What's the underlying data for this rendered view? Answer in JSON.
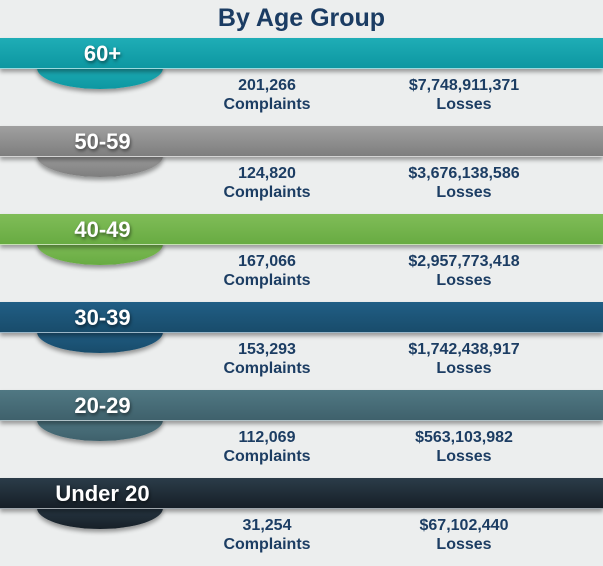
{
  "title": "By Age Group",
  "labels": {
    "complaints": "Complaints",
    "losses": "Losses"
  },
  "colors": {
    "background": "#eceeee",
    "text_navy": "#1c3d63",
    "label_white": "#ffffff"
  },
  "rows": [
    {
      "age": "60+",
      "complaints": "201,266",
      "losses": "$7,748,911,371",
      "color_top": "#1fadb6",
      "color_bottom": "#0d97a1"
    },
    {
      "age": "50-59",
      "complaints": "124,820",
      "losses": "$3,676,138,586",
      "color_top": "#a0a0a0",
      "color_bottom": "#7e7e7e"
    },
    {
      "age": "40-49",
      "complaints": "167,066",
      "losses": "$2,957,773,418",
      "color_top": "#80bd58",
      "color_bottom": "#68ab42"
    },
    {
      "age": "30-39",
      "complaints": "153,293",
      "losses": "$1,742,438,917",
      "color_top": "#215e85",
      "color_bottom": "#184c6b"
    },
    {
      "age": "20-29",
      "complaints": "112,069",
      "losses": "$563,103,982",
      "color_top": "#507883",
      "color_bottom": "#3f616c"
    },
    {
      "age": "Under 20",
      "complaints": "31,254",
      "losses": "$67,102,440",
      "color_top": "#2b3c49",
      "color_bottom": "#161f27"
    }
  ],
  "chart_data": {
    "type": "table",
    "title": "By Age Group",
    "categories": [
      "60+",
      "50-59",
      "40-49",
      "30-39",
      "20-29",
      "Under 20"
    ],
    "series": [
      {
        "name": "Complaints",
        "values": [
          201266,
          124820,
          167066,
          153293,
          112069,
          31254
        ]
      },
      {
        "name": "Losses ($)",
        "values": [
          7748911371,
          3676138586,
          2957773418,
          1742438917,
          563103982,
          67102440
        ]
      }
    ],
    "layout": "horizontal ribbon banners, one per age group; each banner shows age label on colored ribbon with complaints count and dollar losses beneath",
    "ribbon_colors": [
      "#12a3ab",
      "#939393",
      "#76b54c",
      "#1d567b",
      "#476d79",
      "#202e39"
    ]
  }
}
